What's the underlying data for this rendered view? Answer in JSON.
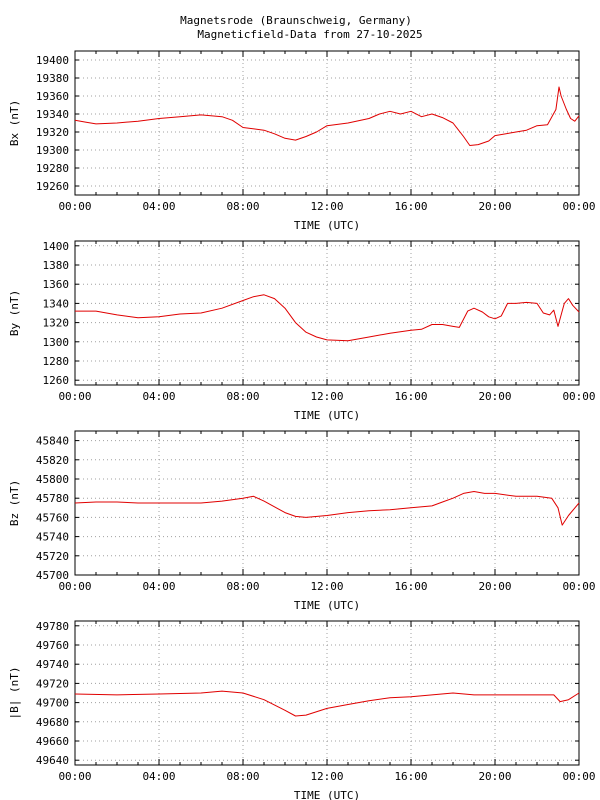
{
  "header": {
    "title": "Magnetsrode (Braunschweig, Germany)",
    "subtitle": "Magneticfield-Data from 27-10-2025"
  },
  "colors": {
    "series": "#e00000",
    "grid": "#a0a0a0",
    "axis": "#000000"
  },
  "chart_data": [
    {
      "type": "line",
      "ylabel": "Bx (nT)",
      "xlabel": "TIME (UTC)",
      "xlim": [
        0,
        24
      ],
      "xticks": [
        "00:00",
        "04:00",
        "08:00",
        "12:00",
        "16:00",
        "20:00",
        "00:00"
      ],
      "ylim": [
        19250,
        19410
      ],
      "yticks": [
        19260,
        19280,
        19300,
        19320,
        19340,
        19360,
        19380,
        19400
      ],
      "grid": true,
      "series": [
        {
          "values": [
            [
              0,
              19333
            ],
            [
              0.5,
              19331
            ],
            [
              1,
              19329
            ],
            [
              2,
              19330
            ],
            [
              3,
              19332
            ],
            [
              4,
              19335
            ],
            [
              5,
              19337
            ],
            [
              6,
              19339
            ],
            [
              7,
              19337
            ],
            [
              7.5,
              19333
            ],
            [
              8,
              19325
            ],
            [
              9,
              19322
            ],
            [
              9.5,
              19318
            ],
            [
              10,
              19313
            ],
            [
              10.5,
              19311
            ],
            [
              11,
              19315
            ],
            [
              11.5,
              19320
            ],
            [
              12,
              19327
            ],
            [
              13,
              19330
            ],
            [
              14,
              19335
            ],
            [
              14.5,
              19340
            ],
            [
              15,
              19343
            ],
            [
              15.5,
              19340
            ],
            [
              16,
              19343
            ],
            [
              16.5,
              19337
            ],
            [
              17,
              19340
            ],
            [
              17.5,
              19336
            ],
            [
              18,
              19330
            ],
            [
              18.5,
              19315
            ],
            [
              18.8,
              19305
            ],
            [
              19.2,
              19306
            ],
            [
              19.7,
              19310
            ],
            [
              20,
              19316
            ],
            [
              21,
              19320
            ],
            [
              21.5,
              19322
            ],
            [
              22,
              19327
            ],
            [
              22.5,
              19328
            ],
            [
              22.9,
              19345
            ],
            [
              23.05,
              19370
            ],
            [
              23.15,
              19360
            ],
            [
              23.4,
              19345
            ],
            [
              23.6,
              19335
            ],
            [
              23.8,
              19332
            ],
            [
              24,
              19338
            ]
          ]
        }
      ]
    },
    {
      "type": "line",
      "ylabel": "By (nT)",
      "xlabel": "TIME (UTC)",
      "xlim": [
        0,
        24
      ],
      "xticks": [
        "00:00",
        "04:00",
        "08:00",
        "12:00",
        "16:00",
        "20:00",
        "00:00"
      ],
      "ylim": [
        1255,
        1405
      ],
      "yticks": [
        1260,
        1280,
        1300,
        1320,
        1340,
        1360,
        1380,
        1400
      ],
      "grid": true,
      "series": [
        {
          "values": [
            [
              0,
              1332
            ],
            [
              1,
              1332
            ],
            [
              2,
              1328
            ],
            [
              3,
              1325
            ],
            [
              4,
              1326
            ],
            [
              5,
              1329
            ],
            [
              6,
              1330
            ],
            [
              7,
              1335
            ],
            [
              8,
              1343
            ],
            [
              8.5,
              1347
            ],
            [
              9,
              1349
            ],
            [
              9.5,
              1345
            ],
            [
              10,
              1335
            ],
            [
              10.5,
              1320
            ],
            [
              11,
              1310
            ],
            [
              11.5,
              1305
            ],
            [
              12,
              1302
            ],
            [
              13,
              1301
            ],
            [
              14,
              1305
            ],
            [
              15,
              1309
            ],
            [
              16,
              1312
            ],
            [
              16.5,
              1313
            ],
            [
              17,
              1318
            ],
            [
              17.5,
              1318
            ],
            [
              18,
              1316
            ],
            [
              18.3,
              1315
            ],
            [
              18.7,
              1332
            ],
            [
              19,
              1335
            ],
            [
              19.4,
              1331
            ],
            [
              19.7,
              1326
            ],
            [
              20,
              1324
            ],
            [
              20.3,
              1327
            ],
            [
              20.6,
              1340
            ],
            [
              21,
              1340
            ],
            [
              21.5,
              1341
            ],
            [
              22,
              1340
            ],
            [
              22.3,
              1330
            ],
            [
              22.6,
              1328
            ],
            [
              22.8,
              1333
            ],
            [
              23,
              1316
            ],
            [
              23.3,
              1340
            ],
            [
              23.5,
              1345
            ],
            [
              23.7,
              1338
            ],
            [
              24,
              1331
            ]
          ]
        }
      ]
    },
    {
      "type": "line",
      "ylabel": "Bz (nT)",
      "xlabel": "TIME (UTC)",
      "xlim": [
        0,
        24
      ],
      "xticks": [
        "00:00",
        "04:00",
        "08:00",
        "12:00",
        "16:00",
        "20:00",
        "00:00"
      ],
      "ylim": [
        45700,
        45850
      ],
      "yticks": [
        45700,
        45720,
        45740,
        45760,
        45780,
        45800,
        45820,
        45840
      ],
      "grid": true,
      "series": [
        {
          "values": [
            [
              0,
              45775
            ],
            [
              1,
              45776
            ],
            [
              2,
              45776
            ],
            [
              3,
              45775
            ],
            [
              4,
              45775
            ],
            [
              5,
              45775
            ],
            [
              6,
              45775
            ],
            [
              7,
              45777
            ],
            [
              8,
              45780
            ],
            [
              8.5,
              45782
            ],
            [
              9,
              45777
            ],
            [
              10,
              45765
            ],
            [
              10.5,
              45761
            ],
            [
              11,
              45760
            ],
            [
              12,
              45762
            ],
            [
              13,
              45765
            ],
            [
              14,
              45767
            ],
            [
              15,
              45768
            ],
            [
              16,
              45770
            ],
            [
              17,
              45772
            ],
            [
              17.5,
              45776
            ],
            [
              18,
              45780
            ],
            [
              18.5,
              45785
            ],
            [
              19,
              45787
            ],
            [
              19.5,
              45785
            ],
            [
              20,
              45785
            ],
            [
              21,
              45782
            ],
            [
              22,
              45782
            ],
            [
              22.7,
              45780
            ],
            [
              23,
              45770
            ],
            [
              23.2,
              45752
            ],
            [
              23.5,
              45762
            ],
            [
              24,
              45775
            ]
          ]
        }
      ]
    },
    {
      "type": "line",
      "ylabel": "|B| (nT)",
      "xlabel": "TIME (UTC)",
      "xlim": [
        0,
        24
      ],
      "xticks": [
        "00:00",
        "04:00",
        "08:00",
        "12:00",
        "16:00",
        "20:00",
        "00:00"
      ],
      "ylim": [
        49635,
        49785
      ],
      "yticks": [
        49640,
        49660,
        49680,
        49700,
        49720,
        49740,
        49760,
        49780
      ],
      "grid": true,
      "series": [
        {
          "values": [
            [
              0,
              49709
            ],
            [
              2,
              49708
            ],
            [
              4,
              49709
            ],
            [
              6,
              49710
            ],
            [
              7,
              49712
            ],
            [
              8,
              49710
            ],
            [
              9,
              49703
            ],
            [
              10,
              49692
            ],
            [
              10.5,
              49686
            ],
            [
              11,
              49687
            ],
            [
              12,
              49694
            ],
            [
              13,
              49698
            ],
            [
              14,
              49702
            ],
            [
              15,
              49705
            ],
            [
              16,
              49706
            ],
            [
              17,
              49708
            ],
            [
              18,
              49710
            ],
            [
              19,
              49708
            ],
            [
              20,
              49708
            ],
            [
              21,
              49708
            ],
            [
              22,
              49708
            ],
            [
              22.8,
              49708
            ],
            [
              23.1,
              49701
            ],
            [
              23.5,
              49703
            ],
            [
              24,
              49710
            ]
          ]
        }
      ]
    }
  ]
}
